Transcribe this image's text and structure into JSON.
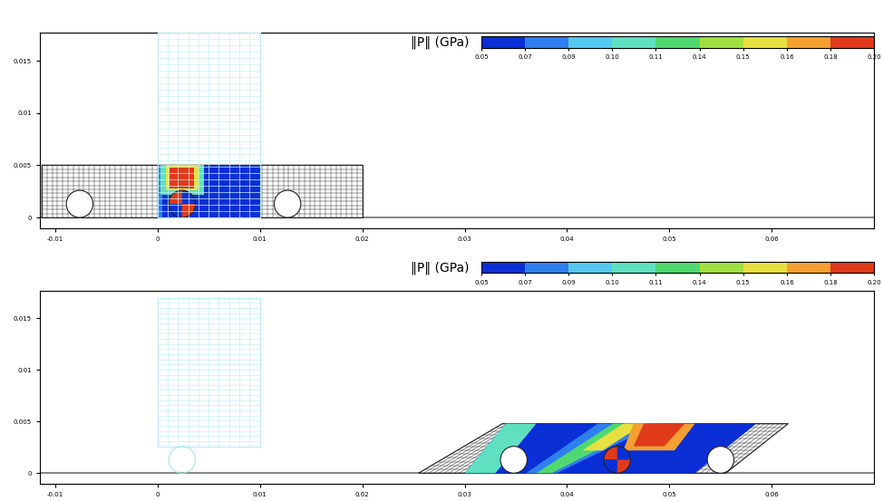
{
  "chart_data": [
    {
      "type": "mesh",
      "xlim": [
        -0.0115,
        0.07
      ],
      "ylim": [
        -0.001,
        0.0177
      ],
      "xticks": [
        -0.01,
        0,
        0.01,
        0.02,
        0.03,
        0.04,
        0.05,
        0.06
      ],
      "yticks": [
        0,
        0.005,
        0.01,
        0.015
      ],
      "colorbar": {
        "label": "‖P‖ (GPa)",
        "ticks": [
          0.05,
          0.07,
          0.09,
          {
            "value": 0.1,
            "label": "0.10"
          },
          0.11,
          0.14,
          0.15,
          0.16,
          0.18,
          {
            "value": 0.2,
            "label": "0.20"
          }
        ],
        "colors": [
          "#0a2fd6",
          "#2f7ff0",
          "#55c8f0",
          "#5fe0c0",
          "#4fd870",
          "#9fe040",
          "#e8e040",
          "#f5a030",
          "#e03a1a"
        ]
      },
      "ground_y": 0,
      "body": {
        "x": [
          -0.0113,
          0.02,
          0.02,
          -0.0113
        ],
        "y": [
          0,
          0,
          0.005,
          0.005
        ]
      },
      "regions": [
        {
          "value": 0.05,
          "x": [
            0.0,
            0.01,
            0.01,
            0.0
          ],
          "y": [
            0,
            0,
            0.005,
            0.005
          ]
        },
        {
          "value": 0.08,
          "x": [
            0.0,
            0.0005,
            0.0005,
            0.0
          ],
          "y": [
            0,
            0,
            0.005,
            0.005
          ]
        },
        {
          "value": 0.1,
          "x": [
            0.0003,
            0.0045,
            0.0045,
            0.0003
          ],
          "y": [
            0.0022,
            0.0022,
            0.005,
            0.005
          ]
        },
        {
          "value": 0.15,
          "x": [
            0.0008,
            0.004,
            0.004,
            0.0008
          ],
          "y": [
            0.0026,
            0.0026,
            0.005,
            0.005
          ]
        },
        {
          "value": 0.19,
          "x": [
            0.0012,
            0.0036,
            0.0036,
            0.0012
          ],
          "y": [
            0.0028,
            0.0028,
            0.0048,
            0.0048
          ]
        }
      ],
      "wheels": [
        {
          "x": -0.0076,
          "y": 0.0013,
          "r": 0.0013,
          "values": null
        },
        {
          "x": 0.0024,
          "y": 0.0013,
          "r": 0.0013,
          "values": [
            0.05,
            0.19,
            0.05,
            0.19
          ]
        },
        {
          "x": 0.0127,
          "y": 0.0013,
          "r": 0.0013,
          "values": null
        }
      ],
      "indenter": {
        "x": [
          0,
          0.01
        ],
        "y": [
          0,
          0.0177
        ],
        "wheel": null
      }
    },
    {
      "type": "mesh",
      "xlim": [
        -0.0115,
        0.07
      ],
      "ylim": [
        -0.001,
        0.0177
      ],
      "xticks": [
        -0.01,
        0,
        0.01,
        0.02,
        0.03,
        0.04,
        0.05,
        0.06
      ],
      "yticks": [
        0,
        0.005,
        0.01,
        0.015
      ],
      "colorbar": {
        "label": "‖P‖ (GPa)",
        "ticks": [
          0.05,
          0.07,
          0.09,
          {
            "value": 0.1,
            "label": "0.10"
          },
          0.11,
          0.14,
          0.15,
          0.16,
          0.18,
          {
            "value": 0.2,
            "label": "0.20"
          }
        ],
        "colors": [
          "#0a2fd6",
          "#2f7ff0",
          "#55c8f0",
          "#5fe0c0",
          "#4fd870",
          "#9fe040",
          "#e8e040",
          "#f5a030",
          "#e03a1a"
        ]
      },
      "ground_y": 0,
      "body": {
        "x": [
          0.0255,
          0.0555,
          0.0616,
          0.0337
        ],
        "y": [
          0,
          0,
          0.0048,
          0.0048
        ]
      },
      "regions": [
        {
          "value": 0.05,
          "x": [
            0.03,
            0.0525,
            0.0585,
            0.034
          ],
          "y": [
            0,
            0,
            0.0048,
            0.0048
          ]
        },
        {
          "value": 0.1,
          "x": [
            0.03,
            0.033,
            0.037,
            0.034
          ],
          "y": [
            0,
            0,
            0.0048,
            0.0048
          ]
        },
        {
          "value": 0.08,
          "x": [
            0.036,
            0.039,
            0.049,
            0.043
          ],
          "y": [
            0,
            0,
            0.0048,
            0.0048
          ]
        },
        {
          "value": 0.12,
          "x": [
            0.037,
            0.0385,
            0.048,
            0.0445
          ],
          "y": [
            0,
            0,
            0.0048,
            0.0048
          ]
        },
        {
          "value": 0.15,
          "x": [
            0.0415,
            0.0435,
            0.0475,
            0.0455
          ],
          "y": [
            0.0022,
            0.0022,
            0.0048,
            0.0048
          ]
        },
        {
          "value": 0.17,
          "x": [
            0.0455,
            0.0505,
            0.0525,
            0.0465
          ],
          "y": [
            0.0022,
            0.0022,
            0.0048,
            0.0048
          ]
        },
        {
          "value": 0.19,
          "x": [
            0.0465,
            0.0495,
            0.0515,
            0.0475
          ],
          "y": [
            0.0026,
            0.0026,
            0.0048,
            0.0048
          ]
        }
      ],
      "wheels": [
        {
          "x": 0.0348,
          "y": 0.0013,
          "r": 0.0013,
          "values": null
        },
        {
          "x": 0.0449,
          "y": 0.0013,
          "r": 0.0013,
          "values": [
            0.05,
            0.19,
            0.05,
            0.19
          ]
        },
        {
          "x": 0.055,
          "y": 0.0013,
          "r": 0.0013,
          "values": null
        }
      ],
      "indenter": {
        "x": [
          0,
          0.01
        ],
        "y": [
          0.0026,
          0.017
        ],
        "wheel": {
          "x": 0.0024,
          "y": 0.0013,
          "r": 0.0013
        }
      }
    }
  ]
}
